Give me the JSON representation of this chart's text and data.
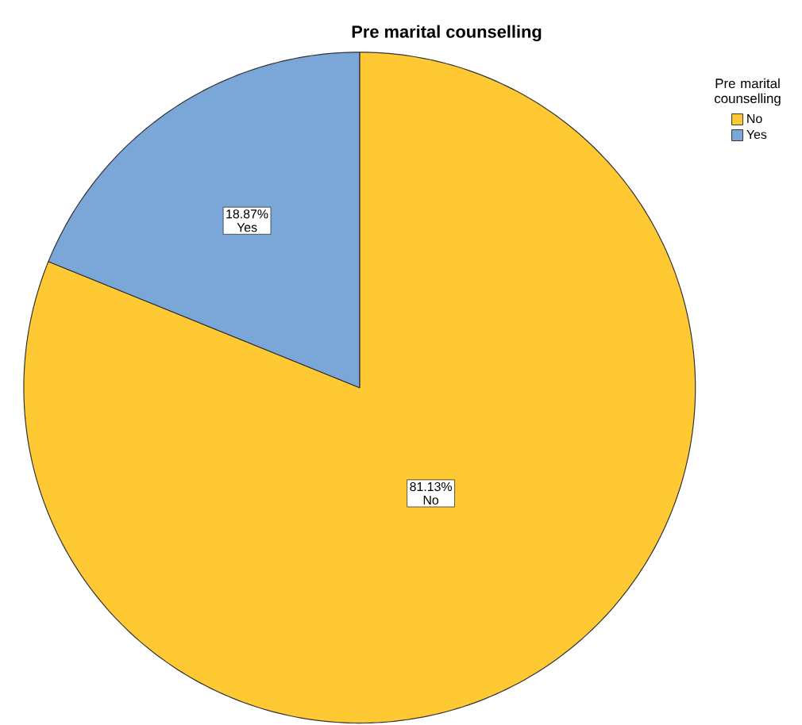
{
  "chart_data": {
    "type": "pie",
    "title": "Pre marital counselling",
    "legend_title": "Pre marital counselling",
    "categories": [
      "No",
      "Yes"
    ],
    "values": [
      81.13,
      18.87
    ],
    "value_labels": [
      "81.13%",
      "18.87%"
    ],
    "colors": [
      "#ffc933",
      "#7aa7d8"
    ],
    "legend": "top right"
  }
}
